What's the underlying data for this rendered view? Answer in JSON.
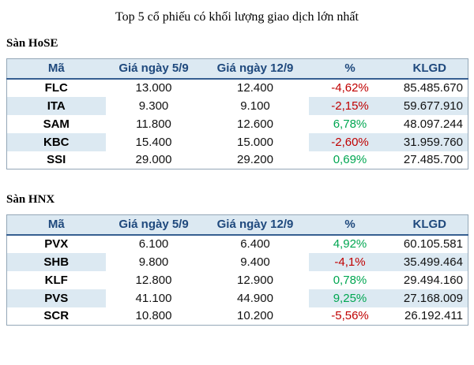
{
  "title": "Top 5 cổ phiếu có khối lượng giao dịch lớn nhất",
  "colors": {
    "header_bg": "#DCE9F2",
    "stripe_bg": "#DCE9F2",
    "header_text": "#1F497D",
    "border_outer": "#94A7B7",
    "border_header": "#365F91",
    "positive": "#00A651",
    "negative": "#C00000"
  },
  "tables": [
    {
      "section": "Sàn HoSE",
      "headers": [
        "Mã",
        "Giá ngày 5/9",
        "Giá ngày 12/9",
        "%",
        "KLGD"
      ],
      "rows": [
        {
          "ma": "FLC",
          "gia1": "13.000",
          "gia2": "12.400",
          "pct": "-4,62%",
          "klgd": "85.485.670"
        },
        {
          "ma": "ITA",
          "gia1": "9.300",
          "gia2": "9.100",
          "pct": "-2,15%",
          "klgd": "59.677.910"
        },
        {
          "ma": "SAM",
          "gia1": "11.800",
          "gia2": "12.600",
          "pct": "6,78%",
          "klgd": "48.097.244"
        },
        {
          "ma": "KBC",
          "gia1": "15.400",
          "gia2": "15.000",
          "pct": "-2,60%",
          "klgd": "31.959.760"
        },
        {
          "ma": "SSI",
          "gia1": "29.000",
          "gia2": "29.200",
          "pct": "0,69%",
          "klgd": "27.485.700"
        }
      ]
    },
    {
      "section": "Sàn HNX",
      "headers": [
        "Mã",
        "Giá ngày 5/9",
        "Giá ngày 12/9",
        "%",
        "KLGD"
      ],
      "rows": [
        {
          "ma": "PVX",
          "gia1": "6.100",
          "gia2": "6.400",
          "pct": "4,92%",
          "klgd": "60.105.581"
        },
        {
          "ma": "SHB",
          "gia1": "9.800",
          "gia2": "9.400",
          "pct": "-4,1%",
          "klgd": "35.499.464"
        },
        {
          "ma": "KLF",
          "gia1": "12.800",
          "gia2": "12.900",
          "pct": "0,78%",
          "klgd": "29.494.160"
        },
        {
          "ma": "PVS",
          "gia1": "41.100",
          "gia2": "44.900",
          "pct": "9,25%",
          "klgd": "27.168.009"
        },
        {
          "ma": "SCR",
          "gia1": "10.800",
          "gia2": "10.200",
          "pct": "-5,56%",
          "klgd": "26.192.411"
        }
      ]
    }
  ]
}
